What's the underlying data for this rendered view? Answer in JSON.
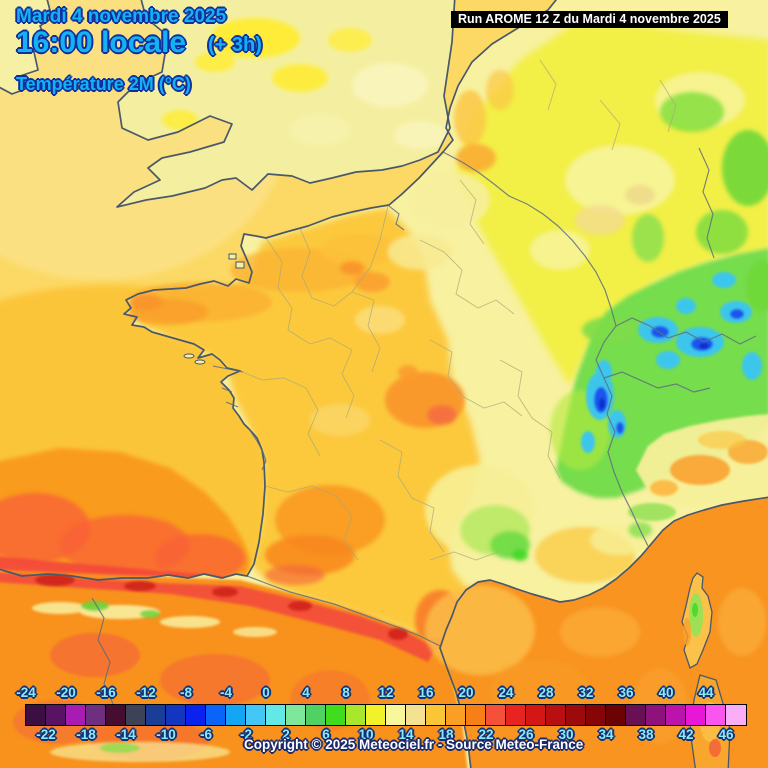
{
  "header": {
    "date_line": "Mardi 4 novembre 2025",
    "time_line": "16:00 locale",
    "time_suffix": "(+ 3h)",
    "variable_line": "Température 2M (°C)",
    "run_label": "Run AROME 12 Z du Mardi 4 novembre 2025"
  },
  "footer": {
    "copyright": "Copyright © 2025 Meteociel.fr - Source Meteo-France"
  },
  "scale": {
    "unit": "°C",
    "min": -24,
    "max": 46,
    "step": 2,
    "top_labels": [
      "-24",
      "-20",
      "-16",
      "-12",
      "-8",
      "-4",
      "0",
      "4",
      "8",
      "12",
      "16",
      "20",
      "24",
      "28",
      "32",
      "36",
      "40",
      "44"
    ],
    "bottom_labels": [
      "-22",
      "-18",
      "-14",
      "-10",
      "-6",
      "-2",
      "2",
      "6",
      "10",
      "14",
      "18",
      "22",
      "26",
      "30",
      "34",
      "38",
      "42",
      "46"
    ],
    "cell_colors": [
      "#3c0f42",
      "#581365",
      "#a81cb4",
      "#6e2f80",
      "#460d30",
      "#3d4257",
      "#1a3e97",
      "#1335c0",
      "#0a22f0",
      "#0b64fa",
      "#14a5f5",
      "#44c6f7",
      "#62e9e6",
      "#7de79a",
      "#50d163",
      "#3fdd1e",
      "#a8e72c",
      "#f2f22a",
      "#f9f79c",
      "#f3e291",
      "#fbc636",
      "#fa9e24",
      "#f87f16",
      "#f4503a",
      "#e92420",
      "#d41715",
      "#b90f11",
      "#9e0a0c",
      "#860607",
      "#6b0304",
      "#691055",
      "#8f127c",
      "#ba14aa",
      "#e817d8",
      "#fa55ee",
      "#fbaef8"
    ]
  },
  "colors": {
    "title_fill": "#14b2f2",
    "title_outline": "#0f2f9e",
    "run_box_bg": "#000000",
    "run_box_text": "#ffffff",
    "scale_label_fill": "#8fe9f5",
    "scale_label_outline": "#123277",
    "copyright_fill": "#ffffff",
    "copyright_outline": "#1a2a6c",
    "sea_yellow": "#fbd964",
    "sea_warm_orange": "#f8941f",
    "land_pale_yellow": "#f7f1a0",
    "land_gold": "#fcc93e",
    "land_orange": "#f99b24",
    "spain_red": "#f3503a",
    "alps_green": "#6fdc4a",
    "cold_cyan": "#3ec6ec",
    "cold_blue": "#1c55ee",
    "coastline": "#49586b"
  }
}
